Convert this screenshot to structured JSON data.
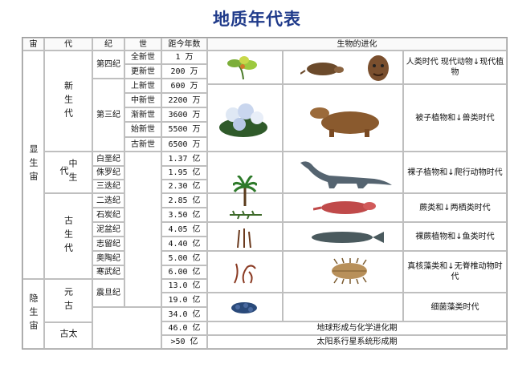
{
  "title": "地质年代表",
  "headers": {
    "eon": "宙",
    "era": "代",
    "period": "纪",
    "epoch": "世",
    "age": "距今年数",
    "evolution": "生物的进化"
  },
  "eons": [
    "显生宙",
    "隐生宙"
  ],
  "eras": [
    "新生代",
    "中生代",
    "古生代",
    "元古",
    "太古"
  ],
  "periods": [
    "第四纪",
    "第三纪",
    "白垩纪",
    "侏罗纪",
    "三迭纪",
    "二迭纪",
    "石炭纪",
    "泥盆纪",
    "志留纪",
    "奥陶纪",
    "寒武纪",
    "震旦纪"
  ],
  "epochs": [
    "全新世",
    "更新世",
    "上新世",
    "中新世",
    "渐新世",
    "始新世",
    "古新世"
  ],
  "ages": [
    "1 万",
    "200 万",
    "600 万",
    "2200 万",
    "3600 万",
    "5500 万",
    "6500 万",
    "1.37 亿",
    "1.95 亿",
    "2.30 亿",
    "2.85 亿",
    "3.50 亿",
    "4.05 亿",
    "4.40 亿",
    "5.00 亿",
    "6.00 亿",
    "13.0 亿",
    "19.0 亿",
    "34.0 亿",
    "46.0 亿",
    ">50 亿"
  ],
  "evolution": [
    "人类时代 现代动物↓现代植物",
    "被子植物和↓兽类时代",
    "裸子植物和↓爬行动物时代",
    "蕨类和↓两栖类时代",
    "裸蕨植物和↓鱼类时代",
    "真核藻类和↓无脊椎动物时代",
    "细菌藻类时代"
  ],
  "earth_rows": [
    "地球形成与化学进化期",
    "太阳系行星系统形成期"
  ],
  "icons": [
    "orchid-icon",
    "mole-icon",
    "human-face-icon",
    "flowers-icon",
    "mammal-icon",
    "palm-icon",
    "dinosaur-icon",
    "fern-icon",
    "amphibian-icon",
    "plant-stalk-icon",
    "fish-icon",
    "seaweed-icon",
    "trilobite-icon",
    "algae-icon"
  ]
}
